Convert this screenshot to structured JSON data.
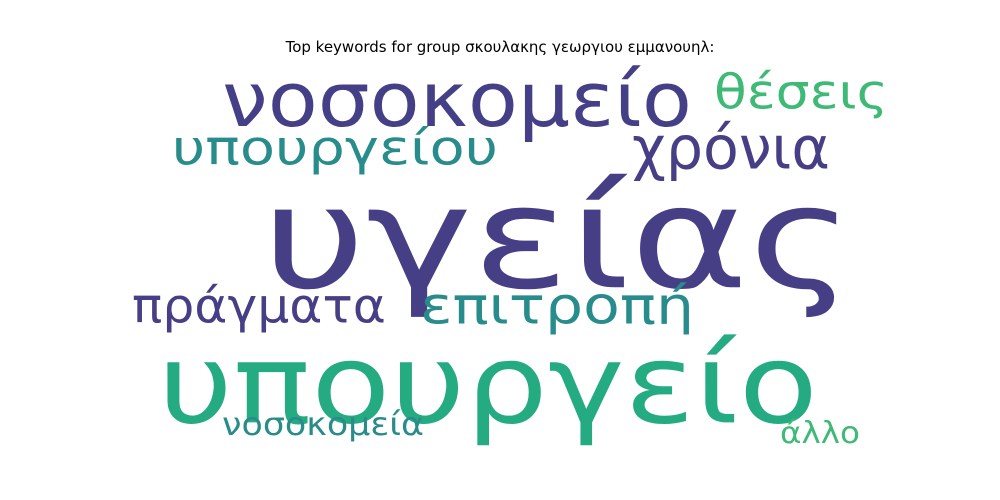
{
  "title": "Top keywords for group σκουλακης γεωργιου εμμανουηλ:",
  "words": [
    {
      "text": "υγείας",
      "color": "#463f86"
    },
    {
      "text": "υπουργείο",
      "color": "#25ab82"
    },
    {
      "text": "νοσοκομείο",
      "color": "#453f87"
    },
    {
      "text": "υπουργείου",
      "color": "#298c8c"
    },
    {
      "text": "χρόνια",
      "color": "#463f86"
    },
    {
      "text": "θέσεις",
      "color": "#3eba76"
    },
    {
      "text": "πράγματα",
      "color": "#463f86"
    },
    {
      "text": "επιτροπή",
      "color": "#298c8c"
    },
    {
      "text": "νοσοκομεία",
      "color": "#2a8c8a"
    },
    {
      "text": "άλλο",
      "color": "#3eba76"
    }
  ]
}
